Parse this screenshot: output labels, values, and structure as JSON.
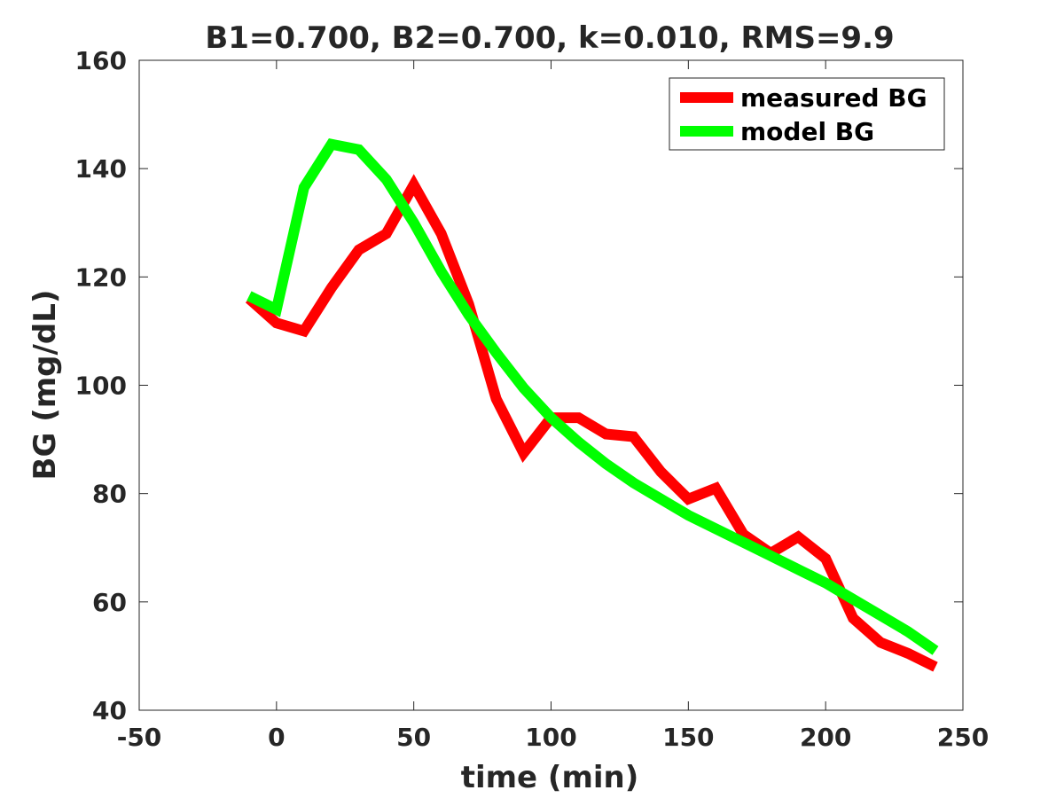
{
  "chart_data": {
    "type": "line",
    "title": "B1=0.700, B2=0.700, k=0.010, RMS=9.9",
    "xlabel": "time (min)",
    "ylabel": "BG (mg/dL)",
    "xlim": [
      -50,
      250
    ],
    "ylim": [
      40,
      160
    ],
    "xticks": [
      -50,
      0,
      50,
      100,
      150,
      200,
      250
    ],
    "yticks": [
      40,
      60,
      80,
      100,
      120,
      140,
      160
    ],
    "grid": false,
    "legend_position": "top-right",
    "series": [
      {
        "name": "measured BG",
        "color": "#ff0000",
        "x": [
          -10,
          0,
          10,
          20,
          30,
          40,
          50,
          60,
          70,
          80,
          90,
          100,
          110,
          120,
          130,
          140,
          150,
          160,
          170,
          180,
          190,
          200,
          210,
          220,
          230,
          240
        ],
        "y": [
          116,
          111.5,
          110,
          118,
          125,
          128,
          137,
          128,
          115,
          97.5,
          87.5,
          94,
          94,
          91,
          90.5,
          84,
          79,
          81,
          72.5,
          69,
          72,
          68,
          57,
          52.5,
          50.5,
          48
        ]
      },
      {
        "name": "model BG",
        "color": "#00ff00",
        "x": [
          -10,
          0,
          10,
          20,
          30,
          40,
          50,
          60,
          70,
          80,
          90,
          100,
          110,
          120,
          130,
          140,
          150,
          160,
          170,
          180,
          190,
          200,
          210,
          220,
          230,
          240
        ],
        "y": [
          116.5,
          114,
          136.5,
          144.5,
          143.5,
          138,
          130,
          121,
          113,
          106,
          99.5,
          94,
          89.5,
          85.5,
          82,
          79,
          76,
          73.5,
          71,
          68.5,
          66,
          63.5,
          60.5,
          57.5,
          54.5,
          51
        ]
      }
    ]
  }
}
